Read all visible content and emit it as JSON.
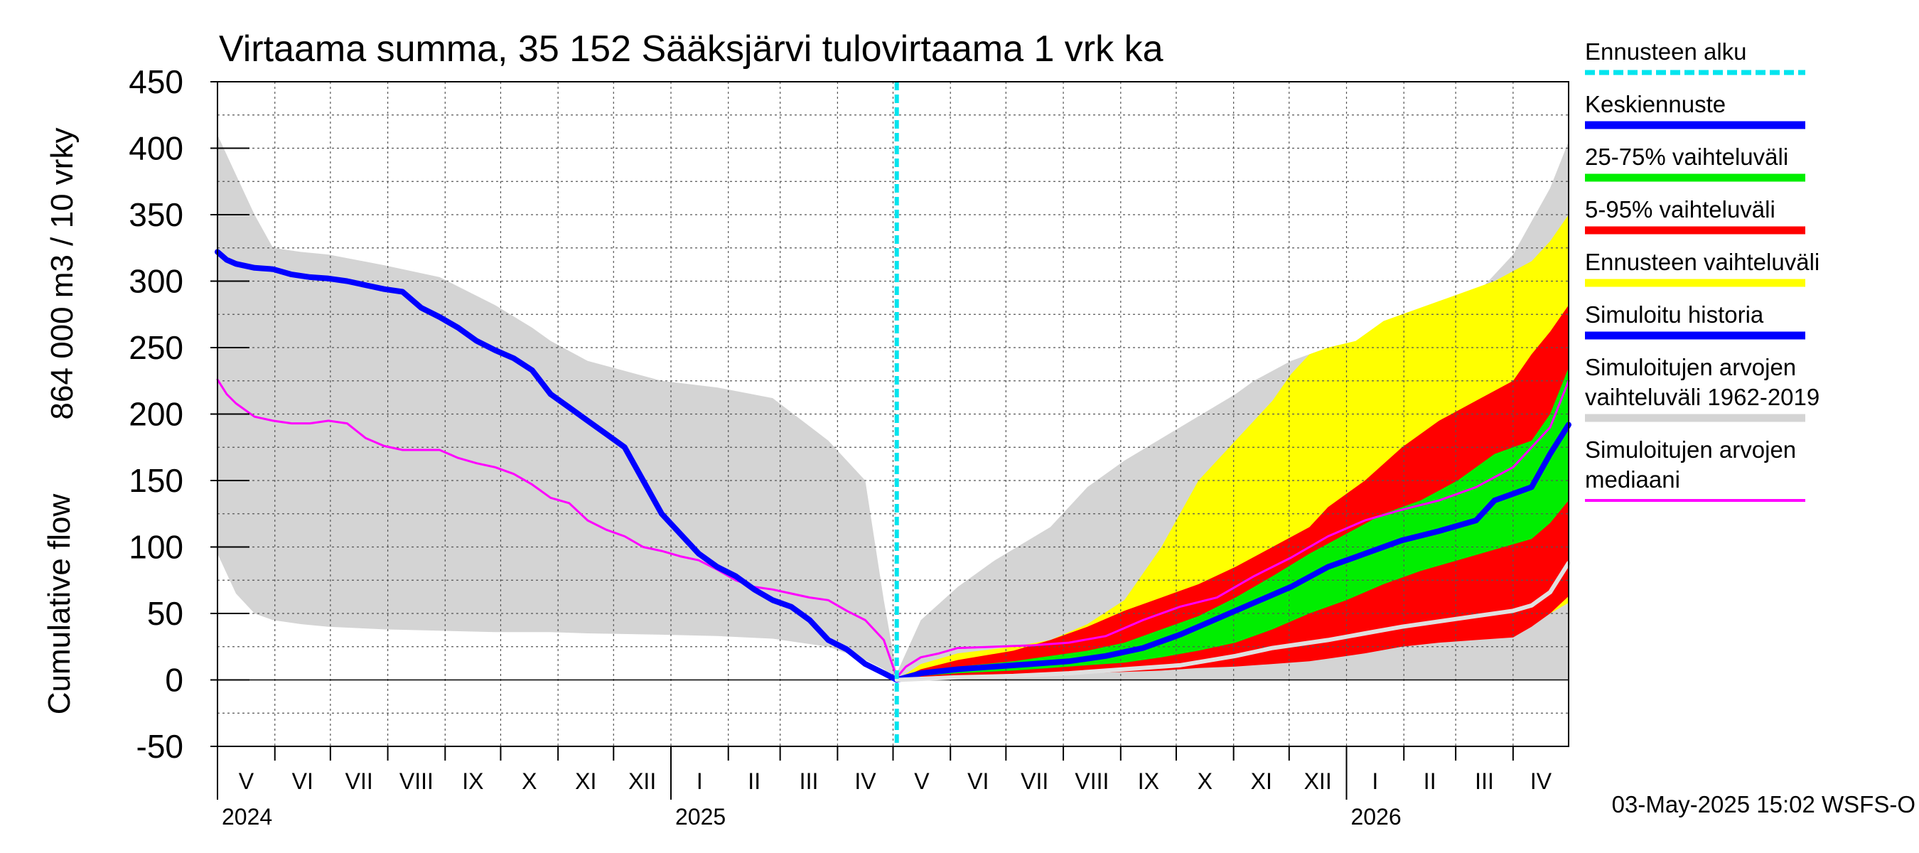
{
  "chart_data": {
    "type": "area",
    "title": "Virtaama summa, 35 152 Sääksjärvi tulovirtaama 1 vrk ka",
    "ylabel_line1": "864 000 m3 / 10 vrky",
    "ylabel_line2": "Cumulative flow",
    "ylim": [
      -50,
      450
    ],
    "yticks": [
      -50,
      0,
      50,
      100,
      150,
      200,
      250,
      300,
      350,
      400,
      450
    ],
    "x_unit": "days since 2024-05-01",
    "xlim": [
      0,
      730
    ],
    "forecast_start": 367,
    "months": [
      {
        "label": "V",
        "start": 0,
        "end": 31
      },
      {
        "label": "VI",
        "start": 31,
        "end": 61
      },
      {
        "label": "VII",
        "start": 61,
        "end": 92
      },
      {
        "label": "VIII",
        "start": 92,
        "end": 123
      },
      {
        "label": "IX",
        "start": 123,
        "end": 153
      },
      {
        "label": "X",
        "start": 153,
        "end": 184
      },
      {
        "label": "XI",
        "start": 184,
        "end": 214
      },
      {
        "label": "XII",
        "start": 214,
        "end": 245
      },
      {
        "label": "I",
        "start": 245,
        "end": 276
      },
      {
        "label": "II",
        "start": 276,
        "end": 304
      },
      {
        "label": "III",
        "start": 304,
        "end": 335
      },
      {
        "label": "IV",
        "start": 335,
        "end": 365
      },
      {
        "label": "V",
        "start": 365,
        "end": 396
      },
      {
        "label": "VI",
        "start": 396,
        "end": 426
      },
      {
        "label": "VII",
        "start": 426,
        "end": 457
      },
      {
        "label": "VIII",
        "start": 457,
        "end": 488
      },
      {
        "label": "IX",
        "start": 488,
        "end": 518
      },
      {
        "label": "X",
        "start": 518,
        "end": 549
      },
      {
        "label": "XI",
        "start": 549,
        "end": 579
      },
      {
        "label": "XII",
        "start": 579,
        "end": 610
      },
      {
        "label": "I",
        "start": 610,
        "end": 641
      },
      {
        "label": "II",
        "start": 641,
        "end": 669
      },
      {
        "label": "III",
        "start": 669,
        "end": 700
      },
      {
        "label": "IV",
        "start": 700,
        "end": 730
      }
    ],
    "years": [
      {
        "label": "2024",
        "x": 0
      },
      {
        "label": "2025",
        "x": 245
      },
      {
        "label": "2026",
        "x": 610
      }
    ],
    "series": [
      {
        "name": "Simuloitujen arvojen vaihteluväli 1962-2019",
        "kind": "band",
        "color": "#d4d4d4",
        "x": [
          0,
          10,
          20,
          30,
          45,
          60,
          90,
          120,
          150,
          170,
          180,
          200,
          240,
          270,
          300,
          330,
          350,
          360,
          367,
          380,
          400,
          420,
          450,
          470,
          490,
          520,
          550,
          560,
          580,
          600,
          620,
          640,
          660,
          680,
          700,
          720,
          730
        ],
        "upper": [
          410,
          380,
          350,
          325,
          322,
          320,
          312,
          303,
          282,
          265,
          255,
          240,
          225,
          220,
          212,
          180,
          150,
          60,
          5,
          45,
          70,
          90,
          115,
          145,
          165,
          190,
          215,
          225,
          240,
          250,
          253,
          270,
          285,
          290,
          320,
          370,
          405
        ],
        "lower": [
          95,
          65,
          50,
          45,
          42,
          40,
          38,
          37,
          36,
          36,
          36,
          35,
          34,
          33,
          31,
          25,
          15,
          8,
          0,
          0,
          0,
          0,
          0,
          0,
          0,
          0,
          0,
          0,
          0,
          0,
          0,
          0,
          0,
          0,
          0,
          0,
          0
        ]
      },
      {
        "name": "Ennusteen vaihteluväli",
        "kind": "band",
        "color": "#ffff00",
        "x": [
          367,
          380,
          400,
          430,
          450,
          470,
          490,
          510,
          530,
          550,
          560,
          570,
          580,
          590,
          600,
          615,
          630,
          650,
          670,
          690,
          710,
          720,
          730
        ],
        "upper": [
          0,
          12,
          20,
          25,
          30,
          42,
          60,
          100,
          150,
          180,
          195,
          210,
          230,
          245,
          250,
          255,
          270,
          280,
          290,
          300,
          315,
          330,
          350
        ],
        "lower": [
          0,
          2,
          4,
          6,
          6,
          7,
          8,
          9,
          10,
          12,
          13,
          15,
          17,
          20,
          25,
          28,
          31,
          34,
          37,
          40,
          45,
          50,
          58
        ]
      },
      {
        "name": "5-95% vaihteluväli",
        "kind": "band",
        "color": "#ff0000",
        "x": [
          367,
          380,
          400,
          430,
          450,
          470,
          490,
          510,
          530,
          550,
          570,
          590,
          600,
          620,
          640,
          660,
          680,
          700,
          710,
          720,
          730
        ],
        "upper": [
          0,
          8,
          15,
          22,
          30,
          40,
          52,
          62,
          72,
          85,
          100,
          115,
          130,
          150,
          175,
          195,
          210,
          225,
          245,
          262,
          282
        ],
        "lower": [
          0,
          2,
          3,
          4,
          5,
          5,
          6,
          7,
          9,
          10,
          12,
          14,
          16,
          20,
          25,
          28,
          30,
          32,
          40,
          50,
          63
        ]
      },
      {
        "name": "25-75% vaihteluväli",
        "kind": "band",
        "color": "#00ee00",
        "x": [
          367,
          380,
          400,
          430,
          450,
          470,
          490,
          510,
          530,
          550,
          570,
          590,
          610,
          630,
          650,
          670,
          690,
          710,
          720,
          730
        ],
        "upper": [
          0,
          6,
          10,
          14,
          18,
          22,
          28,
          38,
          48,
          62,
          78,
          95,
          110,
          125,
          135,
          150,
          170,
          180,
          200,
          235
        ],
        "lower": [
          0,
          3,
          5,
          7,
          9,
          11,
          13,
          17,
          22,
          28,
          38,
          50,
          60,
          72,
          82,
          90,
          98,
          106,
          118,
          135
        ]
      },
      {
        "name": "Simuloitujen arvojen mediaani",
        "kind": "line",
        "color": "#ff00ff",
        "width": 3,
        "x": [
          0,
          5,
          10,
          20,
          30,
          40,
          50,
          60,
          70,
          80,
          90,
          100,
          110,
          120,
          130,
          140,
          150,
          160,
          170,
          180,
          190,
          200,
          210,
          220,
          230,
          240,
          250,
          260,
          270,
          280,
          290,
          300,
          310,
          320,
          330,
          340,
          350,
          360,
          367,
          372,
          380,
          390,
          400,
          420,
          440,
          460,
          480,
          500,
          520,
          540,
          560,
          580,
          600,
          620,
          640,
          660,
          680,
          700,
          710,
          720,
          730
        ],
        "values": [
          226,
          215,
          208,
          198,
          195,
          193,
          193,
          195,
          193,
          182,
          176,
          173,
          173,
          173,
          167,
          163,
          160,
          155,
          147,
          137,
          133,
          120,
          113,
          108,
          100,
          97,
          93,
          90,
          83,
          75,
          70,
          68,
          65,
          62,
          60,
          52,
          45,
          30,
          2,
          10,
          17,
          20,
          24,
          25,
          26,
          28,
          33,
          45,
          55,
          62,
          78,
          92,
          108,
          120,
          128,
          135,
          145,
          160,
          175,
          190,
          225
        ]
      },
      {
        "name": "Simuloitu historia",
        "kind": "line",
        "color": "#0000ff",
        "width": 8,
        "x": [
          0,
          5,
          10,
          20,
          30,
          40,
          50,
          60,
          70,
          80,
          90,
          100,
          110,
          120,
          130,
          140,
          150,
          160,
          170,
          180,
          190,
          200,
          210,
          220,
          230,
          240,
          250,
          260,
          270,
          280,
          290,
          300,
          310,
          320,
          330,
          340,
          350,
          360,
          367
        ],
        "values": [
          322,
          316,
          313,
          310,
          309,
          305,
          303,
          302,
          300,
          297,
          294,
          292,
          280,
          273,
          265,
          255,
          248,
          242,
          233,
          215,
          205,
          195,
          185,
          175,
          150,
          125,
          110,
          95,
          85,
          78,
          68,
          60,
          55,
          45,
          30,
          23,
          12,
          5,
          0
        ]
      },
      {
        "name": "Keskiennuste",
        "kind": "line",
        "color": "#0000ff",
        "width": 8,
        "x": [
          367,
          380,
          400,
          420,
          440,
          460,
          480,
          500,
          520,
          540,
          560,
          580,
          600,
          620,
          640,
          660,
          680,
          690,
          700,
          710,
          720,
          730
        ],
        "values": [
          0,
          5,
          8,
          10,
          12,
          14,
          18,
          24,
          34,
          46,
          58,
          70,
          85,
          95,
          105,
          112,
          120,
          135,
          140,
          145,
          170,
          192
        ]
      },
      {
        "name": "lower-sim",
        "kind": "line",
        "color": "#e0e0e0",
        "width": 6,
        "x": [
          367,
          400,
          430,
          460,
          490,
          520,
          550,
          570,
          600,
          620,
          640,
          660,
          680,
          700,
          710,
          720,
          730
        ],
        "values": [
          0,
          2,
          3,
          5,
          8,
          11,
          18,
          24,
          30,
          35,
          40,
          44,
          48,
          52,
          56,
          66,
          88
        ]
      },
      {
        "name": "Ennusteen alku",
        "kind": "vline",
        "color": "#00e5ee",
        "width": 6,
        "x": 367
      }
    ]
  },
  "legend": [
    {
      "label": "Ennusteen alku",
      "color": "#00e5ee",
      "style": "dashed"
    },
    {
      "label": "Keskiennuste",
      "color": "#0000ff",
      "style": "thick"
    },
    {
      "label": "25-75% vaihteluväli",
      "color": "#00ee00",
      "style": "thick"
    },
    {
      "label": "5-95% vaihteluväli",
      "color": "#ff0000",
      "style": "thick"
    },
    {
      "label": "Ennusteen vaihteluväli",
      "color": "#ffff00",
      "style": "thick"
    },
    {
      "label": "Simuloitu historia",
      "color": "#0000ff",
      "style": "thick"
    },
    {
      "label": "Simuloitujen arvojen",
      "label2": "vaihteluväli 1962-2019",
      "color": "#d4d4d4",
      "style": "thick"
    },
    {
      "label": "Simuloitujen arvojen",
      "label2": "mediaani",
      "color": "#ff00ff",
      "style": "thin"
    }
  ],
  "footer": "03-May-2025 15:02 WSFS-O"
}
